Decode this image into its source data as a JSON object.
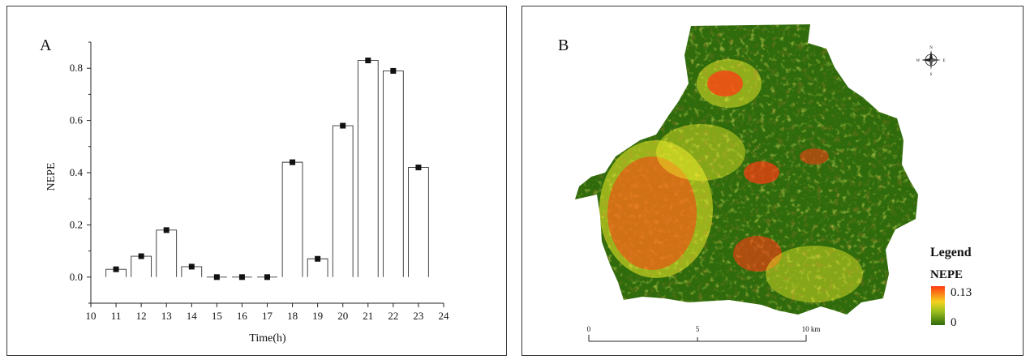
{
  "chart_data": [
    {
      "type": "scatter",
      "panel_label": "A",
      "xlabel": "Time(h)",
      "ylabel": "NEPE",
      "xlim": [
        10,
        24
      ],
      "ylim": [
        -0.1,
        0.9
      ],
      "xticks": [
        "10",
        "11",
        "12",
        "13",
        "14",
        "15",
        "16",
        "17",
        "18",
        "19",
        "20",
        "21",
        "22",
        "23",
        "24"
      ],
      "yticks": [
        "0.0",
        "0.2",
        "0.4",
        "0.6",
        "0.8"
      ],
      "x": [
        11,
        12,
        13,
        14,
        15,
        16,
        17,
        18,
        19,
        20,
        21,
        22,
        23
      ],
      "y": [
        0.03,
        0.08,
        0.18,
        0.04,
        0.0,
        0.0,
        0.0,
        0.44,
        0.07,
        0.58,
        0.83,
        0.79,
        0.42
      ],
      "grid": false
    },
    {
      "type": "heatmap",
      "panel_label": "B",
      "legend": {
        "title": "Legend",
        "variable": "NEPE",
        "max_label": "0.13",
        "min_label": "0"
      },
      "scale_bar": {
        "labels": [
          "0",
          "5",
          "10 km"
        ]
      },
      "north_arrow": {
        "n": "N",
        "s": "S",
        "e": "E",
        "w": "W"
      },
      "colors": {
        "low": "#2f6b0c",
        "mid": "#f2ef2a",
        "high": "#ff3a12"
      }
    }
  ]
}
